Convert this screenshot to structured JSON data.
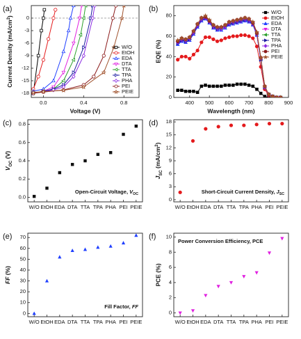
{
  "chart_data": [
    {
      "type": "line",
      "panel_label": "(a)",
      "open_markers": true,
      "legend": "lower right",
      "xlabel": "Voltage (V)",
      "ylabel": [
        {
          "text": "Current Density (mA/cm"
        },
        {
          "text": "2",
          "style": "sup"
        },
        {
          "text": ")"
        }
      ],
      "xlim": [
        -0.12,
        0.95
      ],
      "xticks": [
        {
          "value": 0,
          "label": "0.0"
        },
        {
          "value": 0.4,
          "label": "0.4"
        },
        {
          "value": 0.8,
          "label": "0.8"
        }
      ],
      "ylim": [
        -19,
        3
      ],
      "yticks": [
        0,
        -3,
        -6,
        -9,
        -12,
        -15,
        -18
      ],
      "series": [
        {
          "name": "W/O",
          "color": "#000000",
          "marker": "square",
          "x": [
            -0.1,
            -0.05,
            -0.02,
            0.0,
            0.01
          ],
          "values": [
            -18,
            -9,
            -3,
            0,
            2
          ]
        },
        {
          "name": "EtOH",
          "color": "#e41a1c",
          "marker": "circle",
          "x": [
            -0.1,
            -0.05,
            0,
            0.05,
            0.1,
            0.12
          ],
          "values": [
            -17,
            -14,
            -10,
            -5,
            0,
            2
          ]
        },
        {
          "name": "EDA",
          "color": "#1f3fff",
          "marker": "triangle-up",
          "x": [
            -0.1,
            0,
            0.1,
            0.2,
            0.25,
            0.27,
            0.3
          ],
          "values": [
            -17.5,
            -17,
            -15,
            -8,
            -3,
            0,
            3
          ]
        },
        {
          "name": "DTA",
          "color": "#e020e0",
          "marker": "triangle-down",
          "x": [
            -0.1,
            0,
            0.1,
            0.2,
            0.3,
            0.36,
            0.38
          ],
          "values": [
            -18,
            -17.5,
            -16.5,
            -13,
            -6,
            0,
            3
          ]
        },
        {
          "name": "TTA",
          "color": "#2ca02c",
          "marker": "triangle-left",
          "x": [
            -0.1,
            0,
            0.1,
            0.2,
            0.3,
            0.37,
            0.4,
            0.42
          ],
          "values": [
            -18,
            -17.5,
            -17,
            -15,
            -10,
            -4,
            0,
            3
          ]
        },
        {
          "name": "TPA",
          "color": "#1a1aa0",
          "marker": "triangle-right",
          "x": [
            -0.1,
            0,
            0.1,
            0.2,
            0.3,
            0.4,
            0.47,
            0.49
          ],
          "values": [
            -18,
            -17.5,
            -17,
            -16,
            -13,
            -7,
            0,
            3
          ]
        },
        {
          "name": "PHA",
          "color": "#8a2be2",
          "marker": "diamond",
          "x": [
            -0.1,
            0,
            0.1,
            0.2,
            0.3,
            0.4,
            0.49,
            0.51
          ],
          "values": [
            -18,
            -17.6,
            -17.2,
            -16.5,
            -14,
            -9,
            0,
            3
          ]
        },
        {
          "name": "PEI",
          "color": "#8b1a1a",
          "marker": "circle",
          "x": [
            -0.1,
            0,
            0.2,
            0.4,
            0.5,
            0.6,
            0.69,
            0.72
          ],
          "values": [
            -18,
            -17.7,
            -17.2,
            -16,
            -14,
            -9,
            0,
            3
          ]
        },
        {
          "name": "PEIE",
          "color": "#a0522d",
          "marker": "star",
          "x": [
            -0.1,
            0,
            0.2,
            0.4,
            0.6,
            0.7,
            0.78,
            0.8
          ],
          "values": [
            -17.8,
            -17.6,
            -17.3,
            -16.5,
            -13,
            -7,
            0,
            3
          ]
        }
      ]
    },
    {
      "type": "line",
      "panel_label": "(b)",
      "open_markers": false,
      "legend": "upper right",
      "xlabel": "Wavelength (nm)",
      "ylabel": "EQE (%)",
      "xlim": [
        320,
        900
      ],
      "xticks": [
        400,
        500,
        600,
        700,
        800,
        900
      ],
      "ylim": [
        0,
        90
      ],
      "yticks": [
        0,
        20,
        40,
        60,
        80
      ],
      "x": [
        340,
        360,
        380,
        400,
        420,
        440,
        460,
        480,
        500,
        520,
        540,
        560,
        580,
        600,
        620,
        640,
        660,
        680,
        700,
        720,
        740,
        760,
        780,
        800,
        820,
        840,
        860
      ],
      "series": [
        {
          "name": "W/O",
          "color": "#000000",
          "marker": "square",
          "values": [
            7,
            7,
            6,
            6,
            6,
            5,
            11,
            12,
            11,
            11,
            11,
            11,
            12,
            12,
            12,
            13,
            13,
            13,
            12,
            11,
            8,
            4,
            1,
            0,
            0,
            0,
            0
          ]
        },
        {
          "name": "EtOH",
          "color": "#e41a1c",
          "marker": "circle",
          "values": [
            37,
            40,
            40,
            38,
            42,
            46,
            54,
            59,
            59,
            57,
            55,
            56,
            58,
            59,
            60,
            60,
            61,
            61,
            60,
            58,
            50,
            30,
            8,
            2,
            1,
            0,
            0
          ]
        },
        {
          "name": "EDA",
          "color": "#1f3fff",
          "marker": "triangle-up",
          "values": [
            52,
            55,
            54,
            56,
            62,
            69,
            75,
            77,
            73,
            68,
            66,
            66,
            68,
            71,
            72,
            73,
            74,
            75,
            74,
            71,
            61,
            37,
            10,
            3,
            1,
            0,
            0
          ]
        },
        {
          "name": "DTA",
          "color": "#e020e0",
          "marker": "triangle-down",
          "values": [
            54,
            56,
            55,
            57,
            63,
            70,
            76,
            78,
            74,
            69,
            67,
            67,
            69,
            72,
            73,
            74,
            75,
            76,
            75,
            72,
            62,
            38,
            10,
            3,
            1,
            0,
            0
          ]
        },
        {
          "name": "TTA",
          "color": "#2ca02c",
          "marker": "triangle-left",
          "values": [
            55,
            57,
            56,
            58,
            64,
            71,
            77,
            79,
            75,
            70,
            68,
            68,
            70,
            73,
            74,
            75,
            76,
            77,
            76,
            73,
            63,
            38,
            10,
            3,
            1,
            0,
            0
          ]
        },
        {
          "name": "TPA",
          "color": "#1a1aa0",
          "marker": "triangle-right",
          "values": [
            53,
            56,
            55,
            57,
            63,
            70,
            76,
            78,
            74,
            69,
            67,
            68,
            70,
            72,
            73,
            74,
            75,
            76,
            75,
            72,
            62,
            37,
            10,
            3,
            1,
            0,
            0
          ]
        },
        {
          "name": "PHA",
          "color": "#8a2be2",
          "marker": "diamond",
          "values": [
            54,
            57,
            56,
            58,
            64,
            71,
            77,
            78,
            74,
            70,
            68,
            68,
            70,
            73,
            74,
            75,
            76,
            77,
            76,
            72,
            62,
            38,
            10,
            3,
            1,
            0,
            0
          ]
        },
        {
          "name": "PEI",
          "color": "#8b1a1a",
          "marker": "circle",
          "values": [
            55,
            58,
            57,
            59,
            65,
            72,
            78,
            79,
            75,
            71,
            69,
            69,
            71,
            74,
            75,
            76,
            77,
            78,
            77,
            73,
            63,
            39,
            11,
            3,
            1,
            0,
            0
          ]
        },
        {
          "name": "PEIE",
          "color": "#a0522d",
          "marker": "star",
          "values": [
            56,
            58,
            57,
            59,
            65,
            72,
            78,
            80,
            76,
            71,
            69,
            69,
            71,
            74,
            75,
            76,
            77,
            78,
            77,
            74,
            64,
            39,
            11,
            3,
            1,
            0,
            0
          ]
        }
      ]
    },
    {
      "type": "scatter",
      "panel_label": "(c)",
      "marker": "square",
      "color": "#111111",
      "ylabel": [
        {
          "text": "V",
          "style": "italic"
        },
        {
          "text": "OC",
          "style": "sub"
        },
        {
          "text": " (V)"
        }
      ],
      "annotation": [
        {
          "text": "Open-Circuit Voltage, "
        },
        {
          "text": "V",
          "style": "italic"
        },
        {
          "text": "OC",
          "style": "sub"
        }
      ],
      "annotation_position": "lower right",
      "categories": [
        "W/O",
        "EtOH",
        "EDA",
        "DTA",
        "TTA",
        "TPA",
        "PHA",
        "PEI",
        "PEIE"
      ],
      "values": [
        0.01,
        0.1,
        0.27,
        0.36,
        0.4,
        0.47,
        0.49,
        0.69,
        0.78
      ],
      "ylim": [
        -0.05,
        0.85
      ],
      "yticks": [
        {
          "value": 0,
          "label": "0.0"
        },
        {
          "value": 0.2,
          "label": "0.2"
        },
        {
          "value": 0.4,
          "label": "0.4"
        },
        {
          "value": 0.6,
          "label": "0.6"
        },
        {
          "value": 0.8,
          "label": "0.8"
        }
      ]
    },
    {
      "type": "scatter",
      "panel_label": "(d)",
      "marker": "circle",
      "color": "#e41a1c",
      "ylabel": [
        {
          "text": "J",
          "style": "italic"
        },
        {
          "text": "SC",
          "style": "sub"
        },
        {
          "text": " (mA/cm"
        },
        {
          "text": "2",
          "style": "sup"
        },
        {
          "text": ")"
        }
      ],
      "annotation": [
        {
          "text": "Short-Circuit Current Density, "
        },
        {
          "text": "J",
          "style": "italic"
        },
        {
          "text": "SC",
          "style": "sub"
        }
      ],
      "annotation_position": "lower right",
      "categories": [
        "W/O",
        "EtOH",
        "EDA",
        "DTA",
        "TTA",
        "TPA",
        "PHA",
        "PEI",
        "PEIE"
      ],
      "values": [
        1.7,
        13.6,
        16.4,
        16.9,
        17.2,
        17.2,
        17.4,
        17.6,
        17.6
      ],
      "ylim": [
        -0.5,
        18.5
      ],
      "yticks": [
        0,
        3,
        6,
        9,
        12,
        15,
        18
      ]
    },
    {
      "type": "scatter",
      "panel_label": "(e)",
      "marker": "triangle-up",
      "color": "#1f3fff",
      "ylabel": [
        {
          "text": "FF",
          "style": "italic"
        },
        {
          "text": " (%)"
        }
      ],
      "annotation": [
        {
          "text": "Fill Factor, "
        },
        {
          "text": "FF",
          "style": "italic"
        }
      ],
      "annotation_position": "lower right",
      "categories": [
        "W/O",
        "EtOH",
        "EDA",
        "DTA",
        "TTA",
        "TPA",
        "PHA",
        "PEI",
        "PEIE"
      ],
      "values": [
        0,
        30,
        52,
        58,
        59,
        61,
        62,
        65,
        72
      ],
      "ylim": [
        -3,
        74
      ],
      "yticks": [
        0,
        10,
        20,
        30,
        40,
        50,
        60,
        70
      ]
    },
    {
      "type": "scatter",
      "panel_label": "(f)",
      "marker": "triangle-down",
      "color": "#e020e0",
      "ylabel": "PCE (%)",
      "annotation": "Power Conversion Efficiency, PCE",
      "annotation_position": "upper left",
      "categories": [
        "W/O",
        "EtOH",
        "EDA",
        "DTA",
        "TTA",
        "TPA",
        "PHA",
        "PEI",
        "PEIE"
      ],
      "values": [
        0,
        0.3,
        2.3,
        3.5,
        4.0,
        4.8,
        5.3,
        7.9,
        9.8
      ],
      "ylim": [
        -0.5,
        10.5
      ],
      "yticks": [
        0,
        2,
        4,
        6,
        8,
        10
      ]
    }
  ]
}
